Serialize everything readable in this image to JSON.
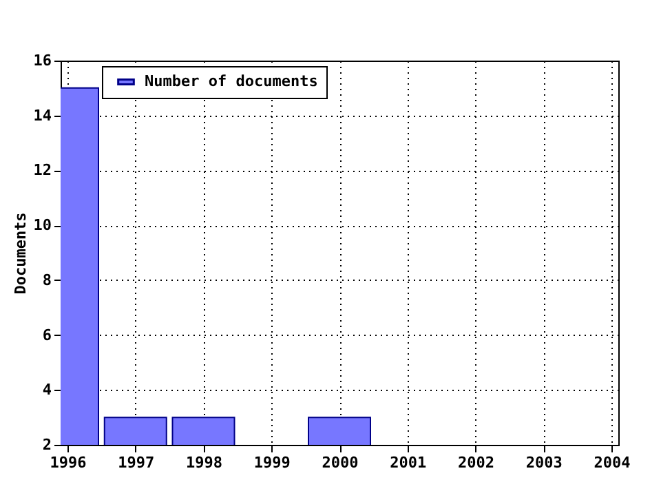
{
  "chart_data": {
    "type": "bar",
    "ylabel": "Documents",
    "x": [
      1996,
      1997,
      1998,
      2000
    ],
    "series": [
      {
        "name": "Number of documents",
        "color": "#7777ff",
        "values": [
          15,
          3,
          3,
          3
        ]
      }
    ],
    "xlim": [
      1996,
      2004
    ],
    "xticks": [
      1996,
      1997,
      1998,
      1999,
      2000,
      2001,
      2002,
      2003,
      2004
    ],
    "ylim": [
      2,
      16
    ],
    "yticks": [
      2,
      4,
      6,
      8,
      10,
      12,
      14,
      16
    ],
    "grid": true,
    "legend": "top left"
  }
}
